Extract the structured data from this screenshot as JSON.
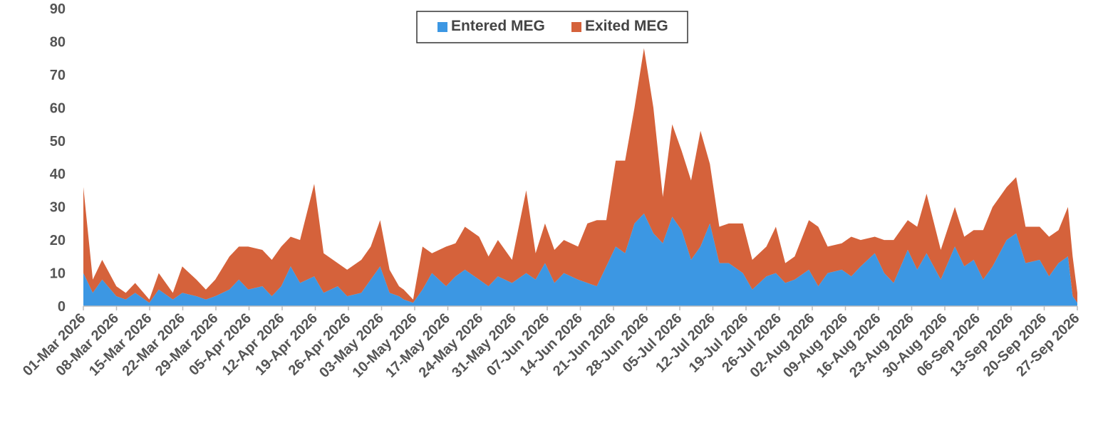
{
  "chart_data": {
    "type": "area",
    "stacked": true,
    "grid": false,
    "legend_position": "top-center",
    "ylim": [
      0,
      90
    ],
    "yticks": [
      0,
      10,
      20,
      30,
      40,
      50,
      60,
      70,
      80,
      90
    ],
    "xlim": [
      "2026-03-01",
      "2026-09-28"
    ],
    "xtick_labels": [
      "01-Mar 2026",
      "08-Mar 2026",
      "15-Mar 2026",
      "22-Mar 2026",
      "29-Mar 2026",
      "05-Apr 2026",
      "12-Apr 2026",
      "19-Apr 2026",
      "26-Apr 2026",
      "03-May 2026",
      "10-May 2026",
      "17-May 2026",
      "24-May 2026",
      "31-May 2026",
      "07-Jun 2026",
      "14-Jun 2026",
      "21-Jun 2026",
      "28-Jun 2026",
      "05-Jul 2026",
      "12-Jul 2026",
      "19-Jul 2026",
      "26-Jul 2026",
      "02-Aug 2026",
      "09-Aug 2026",
      "16-Aug 2026",
      "23-Aug 2026",
      "30-Aug 2026",
      "06-Sep 2026",
      "13-Sep 2026",
      "20-Sep 2026",
      "27-Sep 2026"
    ],
    "colors": {
      "entered": "#3c97e3",
      "exited": "#d5623b"
    },
    "series": [
      {
        "name": "Entered MEG",
        "points": [
          [
            "2026-03-01",
            10
          ],
          [
            "2026-03-03",
            4
          ],
          [
            "2026-03-05",
            8
          ],
          [
            "2026-03-08",
            3
          ],
          [
            "2026-03-10",
            2
          ],
          [
            "2026-03-12",
            4
          ],
          [
            "2026-03-15",
            1
          ],
          [
            "2026-03-17",
            5
          ],
          [
            "2026-03-20",
            2
          ],
          [
            "2026-03-22",
            4
          ],
          [
            "2026-03-25",
            3
          ],
          [
            "2026-03-27",
            2
          ],
          [
            "2026-03-29",
            3
          ],
          [
            "2026-04-01",
            5
          ],
          [
            "2026-04-03",
            8
          ],
          [
            "2026-04-05",
            5
          ],
          [
            "2026-04-08",
            6
          ],
          [
            "2026-04-10",
            3
          ],
          [
            "2026-04-12",
            6
          ],
          [
            "2026-04-14",
            12
          ],
          [
            "2026-04-16",
            7
          ],
          [
            "2026-04-19",
            9
          ],
          [
            "2026-04-21",
            4
          ],
          [
            "2026-04-24",
            6
          ],
          [
            "2026-04-26",
            3
          ],
          [
            "2026-04-29",
            4
          ],
          [
            "2026-05-01",
            8
          ],
          [
            "2026-05-03",
            12
          ],
          [
            "2026-05-05",
            4
          ],
          [
            "2026-05-07",
            3
          ],
          [
            "2026-05-08",
            2
          ],
          [
            "2026-05-10",
            1
          ],
          [
            "2026-05-12",
            5
          ],
          [
            "2026-05-14",
            10
          ],
          [
            "2026-05-17",
            6
          ],
          [
            "2026-05-19",
            9
          ],
          [
            "2026-05-21",
            11
          ],
          [
            "2026-05-24",
            8
          ],
          [
            "2026-05-26",
            6
          ],
          [
            "2026-05-28",
            9
          ],
          [
            "2026-05-31",
            7
          ],
          [
            "2026-06-03",
            10
          ],
          [
            "2026-06-05",
            8
          ],
          [
            "2026-06-07",
            13
          ],
          [
            "2026-06-09",
            7
          ],
          [
            "2026-06-11",
            10
          ],
          [
            "2026-06-14",
            8
          ],
          [
            "2026-06-16",
            7
          ],
          [
            "2026-06-18",
            6
          ],
          [
            "2026-06-20",
            12
          ],
          [
            "2026-06-22",
            18
          ],
          [
            "2026-06-24",
            16
          ],
          [
            "2026-06-26",
            25
          ],
          [
            "2026-06-28",
            28
          ],
          [
            "2026-06-30",
            22
          ],
          [
            "2026-07-02",
            19
          ],
          [
            "2026-07-04",
            27
          ],
          [
            "2026-07-06",
            23
          ],
          [
            "2026-07-08",
            14
          ],
          [
            "2026-07-10",
            18
          ],
          [
            "2026-07-12",
            25
          ],
          [
            "2026-07-14",
            13
          ],
          [
            "2026-07-16",
            13
          ],
          [
            "2026-07-19",
            10
          ],
          [
            "2026-07-21",
            5
          ],
          [
            "2026-07-24",
            9
          ],
          [
            "2026-07-26",
            10
          ],
          [
            "2026-07-28",
            7
          ],
          [
            "2026-07-30",
            8
          ],
          [
            "2026-08-02",
            11
          ],
          [
            "2026-08-04",
            6
          ],
          [
            "2026-08-06",
            10
          ],
          [
            "2026-08-09",
            11
          ],
          [
            "2026-08-11",
            9
          ],
          [
            "2026-08-13",
            12
          ],
          [
            "2026-08-16",
            16
          ],
          [
            "2026-08-18",
            10
          ],
          [
            "2026-08-20",
            7
          ],
          [
            "2026-08-23",
            17
          ],
          [
            "2026-08-25",
            11
          ],
          [
            "2026-08-27",
            16
          ],
          [
            "2026-08-30",
            8
          ],
          [
            "2026-09-02",
            18
          ],
          [
            "2026-09-04",
            12
          ],
          [
            "2026-09-06",
            14
          ],
          [
            "2026-09-08",
            8
          ],
          [
            "2026-09-10",
            12
          ],
          [
            "2026-09-13",
            20
          ],
          [
            "2026-09-15",
            22
          ],
          [
            "2026-09-17",
            13
          ],
          [
            "2026-09-20",
            14
          ],
          [
            "2026-09-22",
            9
          ],
          [
            "2026-09-24",
            13
          ],
          [
            "2026-09-26",
            15
          ],
          [
            "2026-09-27",
            3
          ],
          [
            "2026-09-28",
            1
          ]
        ]
      },
      {
        "name": "Exited MEG",
        "points": [
          [
            "2026-03-01",
            26
          ],
          [
            "2026-03-03",
            4
          ],
          [
            "2026-03-05",
            6
          ],
          [
            "2026-03-08",
            3
          ],
          [
            "2026-03-10",
            2
          ],
          [
            "2026-03-12",
            3
          ],
          [
            "2026-03-15",
            1
          ],
          [
            "2026-03-17",
            5
          ],
          [
            "2026-03-20",
            2
          ],
          [
            "2026-03-22",
            8
          ],
          [
            "2026-03-25",
            5
          ],
          [
            "2026-03-27",
            3
          ],
          [
            "2026-03-29",
            5
          ],
          [
            "2026-04-01",
            10
          ],
          [
            "2026-04-03",
            10
          ],
          [
            "2026-04-05",
            13
          ],
          [
            "2026-04-08",
            11
          ],
          [
            "2026-04-10",
            11
          ],
          [
            "2026-04-12",
            12
          ],
          [
            "2026-04-14",
            9
          ],
          [
            "2026-04-16",
            13
          ],
          [
            "2026-04-19",
            28
          ],
          [
            "2026-04-21",
            12
          ],
          [
            "2026-04-24",
            7
          ],
          [
            "2026-04-26",
            8
          ],
          [
            "2026-04-29",
            10
          ],
          [
            "2026-05-01",
            10
          ],
          [
            "2026-05-03",
            14
          ],
          [
            "2026-05-05",
            7
          ],
          [
            "2026-05-07",
            3
          ],
          [
            "2026-05-08",
            3
          ],
          [
            "2026-05-10",
            1
          ],
          [
            "2026-05-12",
            13
          ],
          [
            "2026-05-14",
            6
          ],
          [
            "2026-05-17",
            12
          ],
          [
            "2026-05-19",
            10
          ],
          [
            "2026-05-21",
            13
          ],
          [
            "2026-05-24",
            13
          ],
          [
            "2026-05-26",
            9
          ],
          [
            "2026-05-28",
            11
          ],
          [
            "2026-05-31",
            7
          ],
          [
            "2026-06-03",
            25
          ],
          [
            "2026-06-05",
            8
          ],
          [
            "2026-06-07",
            12
          ],
          [
            "2026-06-09",
            10
          ],
          [
            "2026-06-11",
            10
          ],
          [
            "2026-06-14",
            10
          ],
          [
            "2026-06-16",
            18
          ],
          [
            "2026-06-18",
            20
          ],
          [
            "2026-06-20",
            14
          ],
          [
            "2026-06-22",
            26
          ],
          [
            "2026-06-24",
            28
          ],
          [
            "2026-06-26",
            35
          ],
          [
            "2026-06-28",
            50
          ],
          [
            "2026-06-30",
            38
          ],
          [
            "2026-07-02",
            14
          ],
          [
            "2026-07-04",
            28
          ],
          [
            "2026-07-06",
            24
          ],
          [
            "2026-07-08",
            24
          ],
          [
            "2026-07-10",
            35
          ],
          [
            "2026-07-12",
            18
          ],
          [
            "2026-07-14",
            11
          ],
          [
            "2026-07-16",
            12
          ],
          [
            "2026-07-19",
            15
          ],
          [
            "2026-07-21",
            9
          ],
          [
            "2026-07-24",
            9
          ],
          [
            "2026-07-26",
            14
          ],
          [
            "2026-07-28",
            6
          ],
          [
            "2026-07-30",
            7
          ],
          [
            "2026-08-02",
            15
          ],
          [
            "2026-08-04",
            18
          ],
          [
            "2026-08-06",
            8
          ],
          [
            "2026-08-09",
            8
          ],
          [
            "2026-08-11",
            12
          ],
          [
            "2026-08-13",
            8
          ],
          [
            "2026-08-16",
            5
          ],
          [
            "2026-08-18",
            10
          ],
          [
            "2026-08-20",
            13
          ],
          [
            "2026-08-23",
            9
          ],
          [
            "2026-08-25",
            13
          ],
          [
            "2026-08-27",
            18
          ],
          [
            "2026-08-30",
            9
          ],
          [
            "2026-09-02",
            12
          ],
          [
            "2026-09-04",
            9
          ],
          [
            "2026-09-06",
            9
          ],
          [
            "2026-09-08",
            15
          ],
          [
            "2026-09-10",
            18
          ],
          [
            "2026-09-13",
            16
          ],
          [
            "2026-09-15",
            17
          ],
          [
            "2026-09-17",
            11
          ],
          [
            "2026-09-20",
            10
          ],
          [
            "2026-09-22",
            12
          ],
          [
            "2026-09-24",
            10
          ],
          [
            "2026-09-26",
            15
          ],
          [
            "2026-09-27",
            12
          ],
          [
            "2026-09-28",
            3
          ]
        ]
      }
    ]
  }
}
